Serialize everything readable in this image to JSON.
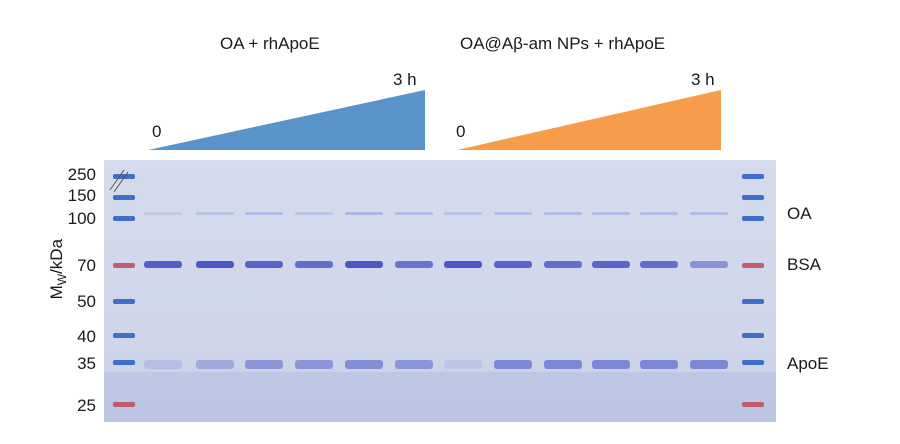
{
  "groups": [
    {
      "title": "OA + rhApoE",
      "start_label": "0",
      "end_label": "3 h",
      "color": "#5a93c9"
    },
    {
      "title": "OA@Aβ-am NPs + rhApoE",
      "start_label": "0",
      "end_label": "3 h",
      "color": "#f79c4a"
    }
  ],
  "y_axis": {
    "label_main": "M",
    "label_sub": "W",
    "label_rest": "/kDa",
    "ticks": [
      "250",
      "150",
      "100",
      "70",
      "50",
      "40",
      "35",
      "25"
    ]
  },
  "band_labels": {
    "oa": "OA",
    "bsa": "BSA",
    "apoe": "ApoE"
  },
  "gel": {
    "background": "#cdd4e8",
    "marker_color": "#2f63c8",
    "marker_red": "#c0505c",
    "band_color": "#3c49c4",
    "bsa_intensity": [
      0.85,
      0.9,
      0.8,
      0.75,
      0.9,
      0.7,
      0.9,
      0.8,
      0.75,
      0.8,
      0.75,
      0.5
    ],
    "apoe_intensity": [
      0.15,
      0.3,
      0.45,
      0.45,
      0.5,
      0.45,
      0.1,
      0.55,
      0.55,
      0.55,
      0.55,
      0.55
    ],
    "oa_intensity": [
      0.1,
      0.15,
      0.2,
      0.15,
      0.25,
      0.2,
      0.15,
      0.2,
      0.2,
      0.2,
      0.2,
      0.2
    ]
  }
}
